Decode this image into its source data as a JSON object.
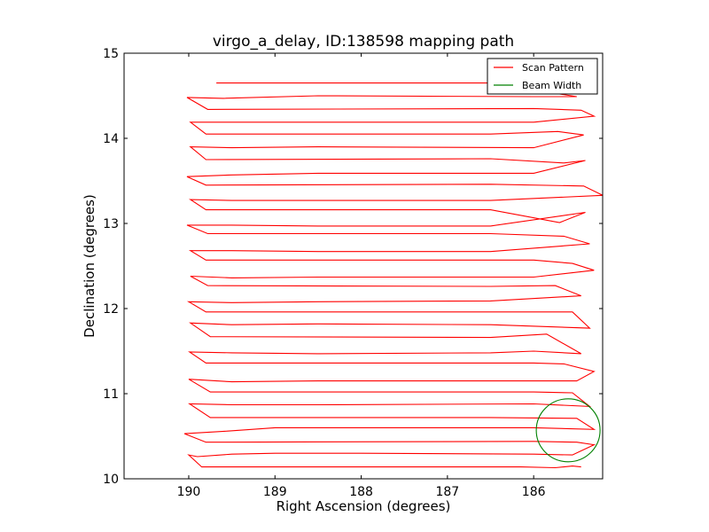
{
  "chart_data": {
    "type": "line",
    "title": "virgo_a_delay, ID:138598 mapping path",
    "xlabel": "Right Ascension (degrees)",
    "ylabel": "Declination (degrees)",
    "xlim": [
      190.75,
      185.2
    ],
    "ylim": [
      10,
      15
    ],
    "x_reversed": true,
    "xticks": [
      190,
      189,
      188,
      187,
      186
    ],
    "yticks": [
      10,
      11,
      12,
      13,
      14,
      15
    ],
    "legend": {
      "position": "top-right",
      "entries": [
        "Scan Pattern",
        "Beam Width"
      ]
    },
    "series": [
      {
        "name": "Scan Pattern",
        "color": "#ff0000",
        "points": [
          [
            185.45,
            10.14
          ],
          [
            185.55,
            10.15
          ],
          [
            185.75,
            10.13
          ],
          [
            186.15,
            10.14
          ],
          [
            189.85,
            10.14
          ],
          [
            190.0,
            10.28
          ],
          [
            189.9,
            10.26
          ],
          [
            189.5,
            10.29
          ],
          [
            189.0,
            10.3
          ],
          [
            188.0,
            10.3
          ],
          [
            186.0,
            10.29
          ],
          [
            185.55,
            10.28
          ],
          [
            185.3,
            10.4
          ],
          [
            185.5,
            10.43
          ],
          [
            186.0,
            10.44
          ],
          [
            189.8,
            10.43
          ],
          [
            190.05,
            10.53
          ],
          [
            189.55,
            10.56
          ],
          [
            189.0,
            10.6
          ],
          [
            188.0,
            10.6
          ],
          [
            186.0,
            10.6
          ],
          [
            185.3,
            10.58
          ],
          [
            185.5,
            10.71
          ],
          [
            186.5,
            10.72
          ],
          [
            189.75,
            10.72
          ],
          [
            189.99,
            10.88
          ],
          [
            189.5,
            10.87
          ],
          [
            188.5,
            10.87
          ],
          [
            186.0,
            10.88
          ],
          [
            185.35,
            10.85
          ],
          [
            185.55,
            11.01
          ],
          [
            186.0,
            11.02
          ],
          [
            189.75,
            11.02
          ],
          [
            190.0,
            11.17
          ],
          [
            189.5,
            11.14
          ],
          [
            188.5,
            11.15
          ],
          [
            186.0,
            11.15
          ],
          [
            185.5,
            11.15
          ],
          [
            185.3,
            11.26
          ],
          [
            185.65,
            11.35
          ],
          [
            186.0,
            11.36
          ],
          [
            189.8,
            11.36
          ],
          [
            189.99,
            11.49
          ],
          [
            189.5,
            11.48
          ],
          [
            188.5,
            11.47
          ],
          [
            186.5,
            11.48
          ],
          [
            186.0,
            11.5
          ],
          [
            185.45,
            11.47
          ],
          [
            185.85,
            11.7
          ],
          [
            186.5,
            11.66
          ],
          [
            189.75,
            11.67
          ],
          [
            189.98,
            11.83
          ],
          [
            189.5,
            11.81
          ],
          [
            188.5,
            11.82
          ],
          [
            186.5,
            11.81
          ],
          [
            185.35,
            11.77
          ],
          [
            185.55,
            11.96
          ],
          [
            186.5,
            11.96
          ],
          [
            189.8,
            11.96
          ],
          [
            190.0,
            12.08
          ],
          [
            189.5,
            12.07
          ],
          [
            188.5,
            12.08
          ],
          [
            186.5,
            12.09
          ],
          [
            185.45,
            12.15
          ],
          [
            185.75,
            12.27
          ],
          [
            186.5,
            12.26
          ],
          [
            189.78,
            12.27
          ],
          [
            189.98,
            12.38
          ],
          [
            189.5,
            12.36
          ],
          [
            188.5,
            12.37
          ],
          [
            186.0,
            12.37
          ],
          [
            185.3,
            12.45
          ],
          [
            185.55,
            12.53
          ],
          [
            186.0,
            12.57
          ],
          [
            189.8,
            12.57
          ],
          [
            189.98,
            12.68
          ],
          [
            189.5,
            12.68
          ],
          [
            188.5,
            12.67
          ],
          [
            186.5,
            12.67
          ],
          [
            185.35,
            12.76
          ],
          [
            185.65,
            12.85
          ],
          [
            186.5,
            12.88
          ],
          [
            189.78,
            12.88
          ],
          [
            190.02,
            12.98
          ],
          [
            189.5,
            12.98
          ],
          [
            188.5,
            12.97
          ],
          [
            186.5,
            12.97
          ],
          [
            185.4,
            13.13
          ],
          [
            185.7,
            13.01
          ],
          [
            186.5,
            13.16
          ],
          [
            189.8,
            13.16
          ],
          [
            189.98,
            13.28
          ],
          [
            189.5,
            13.27
          ],
          [
            188.5,
            13.27
          ],
          [
            186.5,
            13.27
          ],
          [
            185.2,
            13.33
          ],
          [
            185.42,
            13.44
          ],
          [
            186.5,
            13.46
          ],
          [
            189.8,
            13.45
          ],
          [
            190.02,
            13.55
          ],
          [
            189.5,
            13.57
          ],
          [
            188.5,
            13.59
          ],
          [
            186.0,
            13.59
          ],
          [
            185.4,
            13.74
          ],
          [
            185.65,
            13.71
          ],
          [
            186.5,
            13.76
          ],
          [
            189.8,
            13.75
          ],
          [
            189.98,
            13.9
          ],
          [
            189.5,
            13.89
          ],
          [
            188.5,
            13.9
          ],
          [
            186.0,
            13.89
          ],
          [
            185.42,
            14.04
          ],
          [
            185.72,
            14.08
          ],
          [
            186.5,
            14.05
          ],
          [
            189.8,
            14.05
          ],
          [
            189.98,
            14.19
          ],
          [
            189.5,
            14.19
          ],
          [
            188.5,
            14.19
          ],
          [
            186.0,
            14.19
          ],
          [
            185.3,
            14.26
          ],
          [
            185.45,
            14.33
          ],
          [
            186.0,
            14.35
          ],
          [
            189.78,
            14.34
          ],
          [
            190.02,
            14.48
          ],
          [
            189.6,
            14.47
          ],
          [
            188.5,
            14.5
          ],
          [
            186.0,
            14.49
          ],
          [
            185.5,
            14.49
          ],
          [
            186.5,
            14.65
          ],
          [
            189.68,
            14.65
          ]
        ]
      },
      {
        "name": "Beam Width",
        "color": "#008000",
        "shape": "circle",
        "center": [
          185.6,
          10.57
        ],
        "radius": 0.37
      }
    ]
  }
}
